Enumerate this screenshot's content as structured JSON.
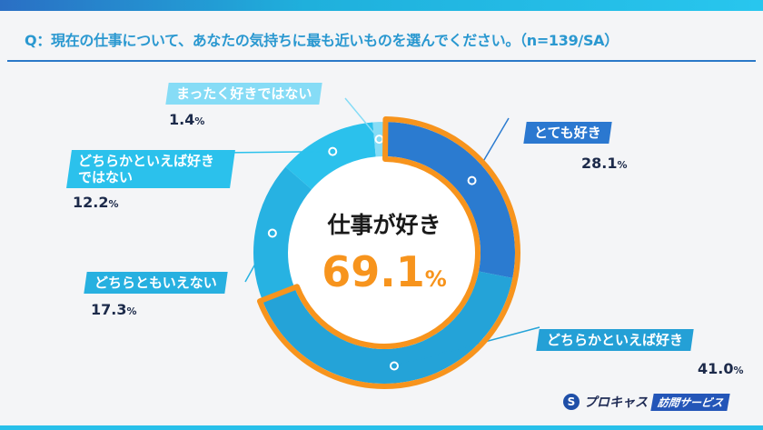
{
  "question": "Q：現在の仕事について、あなたの気持ちに最も近いものを選んでください。（n=139/SA）",
  "center": {
    "title": "仕事が好き",
    "value": "69.1",
    "unit": "%"
  },
  "logo": {
    "name": "プロキャス",
    "badge": "訪問サービス"
  },
  "colors": {
    "accent": "#f7941d",
    "title": "#2a98d0"
  },
  "chart_data": {
    "type": "pie",
    "variant": "donut",
    "categories": [
      "とても好き",
      "どちらかといえば好き",
      "どちらともいえない",
      "どちらかといえば好きではない",
      "まったく好きではない"
    ],
    "values": [
      28.1,
      41.0,
      17.3,
      12.2,
      1.4
    ],
    "value_labels": [
      "28.1",
      "41.0",
      "17.3",
      "12.2",
      "1.4"
    ],
    "unit": "%",
    "colors": [
      "#2b7bd0",
      "#24a3d8",
      "#27b2e2",
      "#2bc1ec",
      "#86dcf6"
    ],
    "highlighted": [
      "とても好き",
      "どちらかといえば好き"
    ],
    "highlight_total": 69.1,
    "highlight_label": "仕事が好き"
  }
}
